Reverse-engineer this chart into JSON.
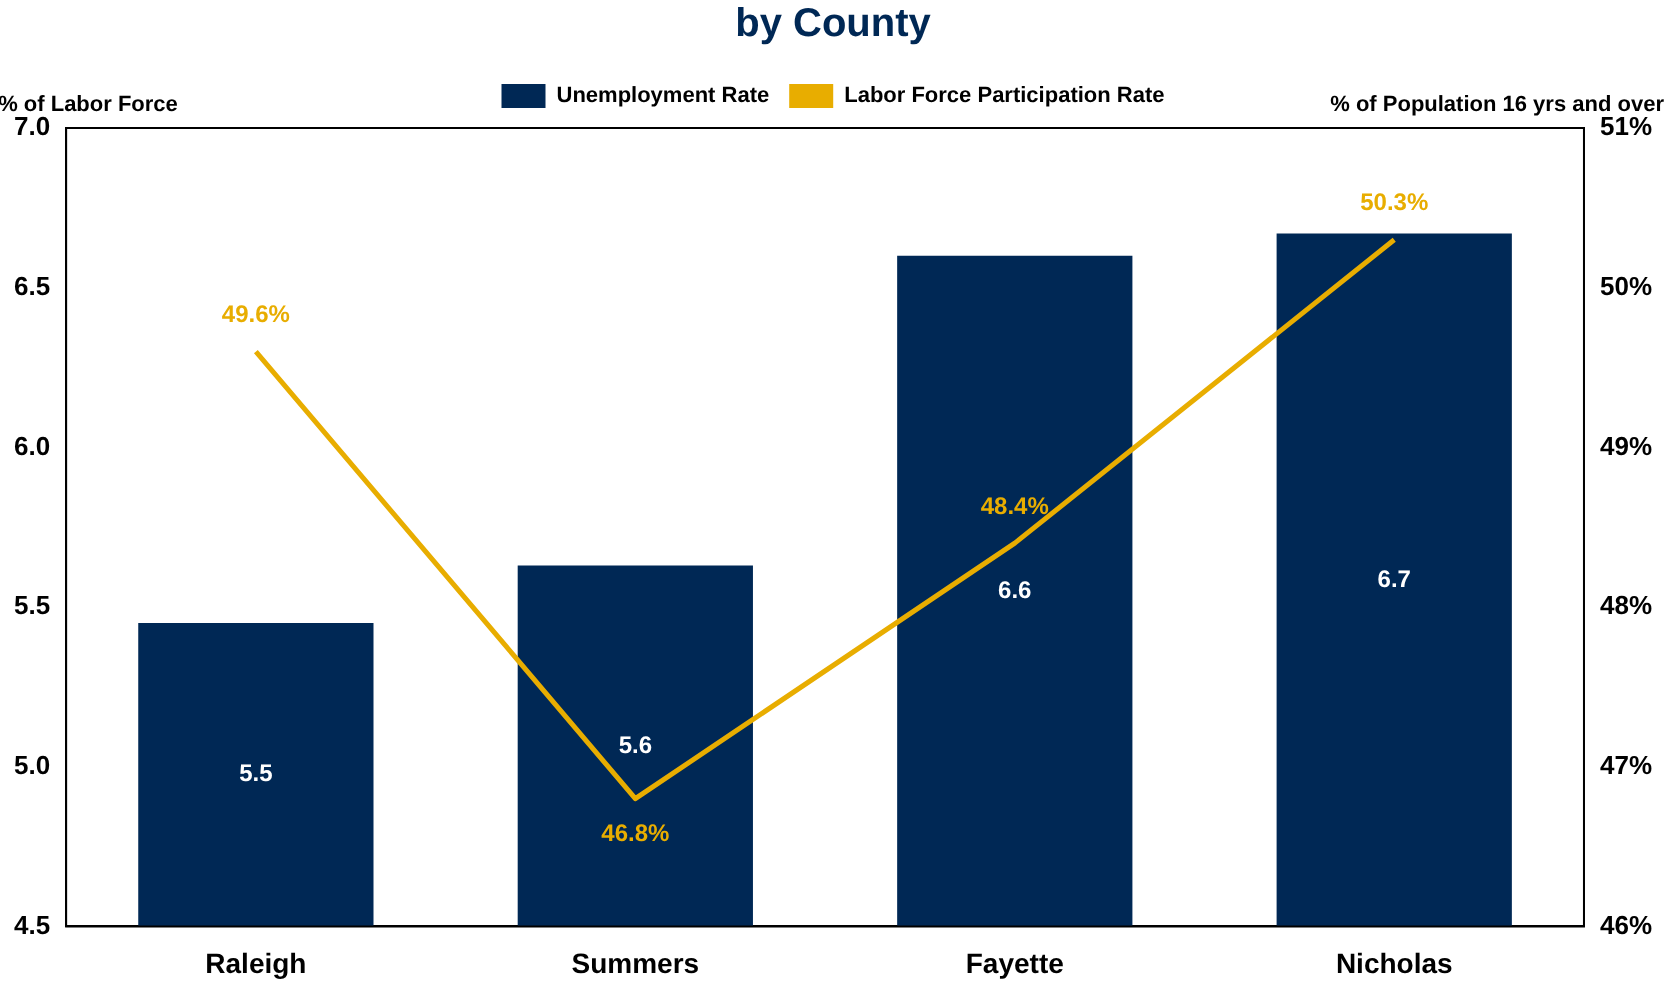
{
  "chart_data": {
    "type": "bar",
    "title": "by County",
    "ylabel": "% of Labor Force",
    "y2label": "% of Population 16 yrs and over",
    "categories": [
      "Raleigh",
      "Summers",
      "Fayette",
      "Nicholas"
    ],
    "series": [
      {
        "name": "Unemployment Rate",
        "color": "#002855",
        "values": [
          5.45,
          5.63,
          6.6,
          6.67
        ],
        "value_labels": [
          "5.5",
          "5.6",
          "6.6",
          "6.7"
        ]
      },
      {
        "name": "Labor Force Participation Rate",
        "type": "line",
        "axis": "y2",
        "color": "#e8ad00",
        "values": [
          49.6,
          46.8,
          48.4,
          50.3
        ],
        "value_labels": [
          "49.6%",
          "46.8%",
          "48.4%",
          "50.3%"
        ]
      }
    ],
    "ylim": [
      4.5,
      7.0
    ],
    "yticks": [
      {
        "value": 4.5,
        "label": "4.5"
      },
      {
        "value": 5,
        "label": "5.0"
      },
      {
        "value": 5.5,
        "label": "5.5"
      },
      {
        "value": 6,
        "label": "6.0"
      },
      {
        "value": 6.5,
        "label": "6.5"
      },
      {
        "value": 7,
        "label": "7.0"
      }
    ],
    "y2lim": [
      46,
      51
    ],
    "y2ticks": [
      {
        "value": 46,
        "label": "46%"
      },
      {
        "value": 47,
        "label": "47%"
      },
      {
        "value": 48,
        "label": "48%"
      },
      {
        "value": 49,
        "label": "49%"
      },
      {
        "value": 50,
        "label": "50%"
      },
      {
        "value": 51,
        "label": "51%"
      }
    ],
    "grid": false,
    "legend": "top",
    "marker": "none"
  }
}
